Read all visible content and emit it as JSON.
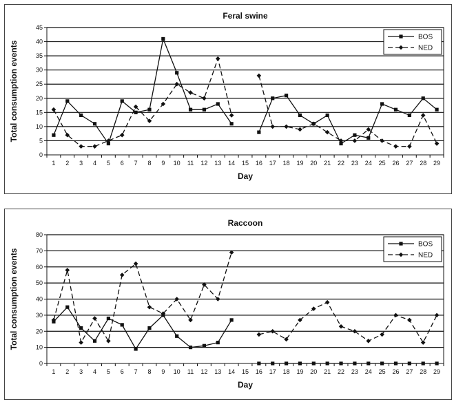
{
  "chart_data": [
    {
      "type": "line",
      "title": "Feral swine",
      "xlabel": "Day",
      "ylabel": "Total consumption events",
      "ylim": [
        0,
        45
      ],
      "yticks": [
        0,
        5,
        10,
        15,
        20,
        25,
        30,
        35,
        40,
        45
      ],
      "categories": [
        "1",
        "2",
        "3",
        "4",
        "5",
        "6",
        "7",
        "8",
        "9",
        "10",
        "11",
        "12",
        "13",
        "14",
        "15",
        "16",
        "17",
        "18",
        "19",
        "20",
        "21",
        "22",
        "23",
        "24",
        "25",
        "26",
        "27",
        "28",
        "29"
      ],
      "grid": "horizontal",
      "legend_position": "top-right",
      "series": [
        {
          "name": "BOS",
          "style": "solid",
          "marker": "square",
          "values": [
            7,
            19,
            14,
            11,
            4,
            19,
            15,
            16,
            41,
            29,
            16,
            16,
            18,
            11,
            null,
            8,
            20,
            21,
            14,
            11,
            14,
            4,
            7,
            6,
            18,
            16,
            14,
            20,
            16
          ]
        },
        {
          "name": "NED",
          "style": "dashed",
          "marker": "diamond",
          "values": [
            16,
            7,
            3,
            3,
            5,
            7,
            17,
            12,
            18,
            25,
            22,
            20,
            34,
            14,
            null,
            28,
            10,
            10,
            9,
            11,
            8,
            5,
            5,
            9,
            5,
            3,
            3,
            14,
            4
          ]
        }
      ]
    },
    {
      "type": "line",
      "title": "Raccoon",
      "xlabel": "Day",
      "ylabel": "Total consumption events",
      "ylim": [
        0,
        80
      ],
      "yticks": [
        0,
        10,
        20,
        30,
        40,
        50,
        60,
        70,
        80
      ],
      "categories": [
        "1",
        "2",
        "3",
        "4",
        "5",
        "6",
        "7",
        "8",
        "9",
        "10",
        "11",
        "12",
        "13",
        "14",
        "15",
        "16",
        "17",
        "18",
        "19",
        "20",
        "21",
        "22",
        "23",
        "24",
        "25",
        "26",
        "27",
        "28",
        "29"
      ],
      "grid": "horizontal",
      "legend_position": "top-right",
      "series": [
        {
          "name": "BOS",
          "style": "solid",
          "marker": "square",
          "values": [
            26,
            35,
            22,
            14,
            28,
            24,
            9,
            22,
            30,
            17,
            10,
            11,
            13,
            27,
            null,
            0,
            0,
            0,
            0,
            0,
            0,
            0,
            0,
            0,
            0,
            0,
            0,
            0,
            0
          ]
        },
        {
          "name": "NED",
          "style": "dashed",
          "marker": "diamond",
          "values": [
            27,
            58,
            13,
            28,
            14,
            55,
            62,
            35,
            31,
            40,
            27,
            49,
            40,
            69,
            null,
            18,
            20,
            15,
            27,
            34,
            38,
            23,
            20,
            14,
            18,
            30,
            27,
            13,
            30
          ]
        }
      ]
    }
  ]
}
